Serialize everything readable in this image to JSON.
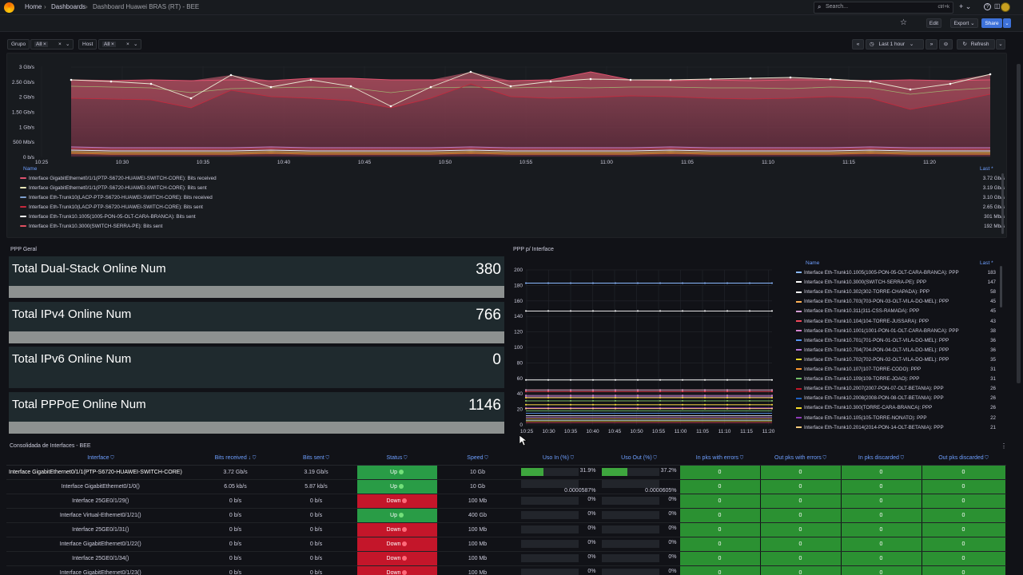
{
  "topbar": {
    "home": "Home",
    "dashboards": "Dashboards",
    "current": "Dashboard Huawei BRAS (RT) - BEE",
    "search_placeholder": "Search...",
    "shortcut": "ctrl+k"
  },
  "subbar": {
    "edit": "Edit",
    "export": "Export",
    "share": "Share"
  },
  "filters": {
    "grupo_label": "Grupo",
    "grupo_value": "All",
    "host_label": "Host",
    "host_value": "All"
  },
  "time": {
    "range": "Last 1 hour",
    "refresh": "Refresh"
  },
  "traffic": {
    "y_ticks": [
      "3 Gb/s",
      "2.50 Gb/s",
      "2 Gb/s",
      "1.50 Gb/s",
      "1 Gb/s",
      "500 Mb/s",
      "0 b/s"
    ],
    "x_ticks": [
      "10:25",
      "10:30",
      "10:35",
      "10:40",
      "10:45",
      "10:50",
      "10:55",
      "11:00",
      "11:05",
      "11:10",
      "11:15",
      "11:20"
    ],
    "legend_name": "Name",
    "legend_last": "Last *",
    "legend": [
      {
        "name": "Interface GigabitEthernet0/1/1(PTP-S6720-HUAWEI-SWITCH-CORE): Bits received",
        "value": "3.72 Gb/s",
        "color": "#e0526f"
      },
      {
        "name": "Interface GigabitEthernet0/1/1(PTP-S6720-HUAWEI-SWITCH-CORE): Bits sent",
        "value": "3.19 Gb/s",
        "color": "#e8e6b8"
      },
      {
        "name": "Interface Eth-Trunk10(LACP-PTP-S6720-HUAWEI-SWITCH-CORE): Bits received",
        "value": "3.10 Gb/s",
        "color": "#7fa0d0"
      },
      {
        "name": "Interface Eth-Trunk10(LACP-PTP-S6720-HUAWEI-SWITCH-CORE): Bits sent",
        "value": "2.65 Gb/s",
        "color": "#c8283c"
      },
      {
        "name": "Interface Eth-Trunk10.1005(1005-PON-05-OLT-CARA-BRANCA): Bits sent",
        "value": "301 Mb/s",
        "color": "#ffffff"
      },
      {
        "name": "Interface Eth-Trunk10.3000(SWITCH-SERRA-PE): Bits sent",
        "value": "192 Mb/s",
        "color": "#e05060"
      }
    ]
  },
  "ppp_geral": {
    "title": "PPP Geral",
    "stats": [
      {
        "label": "Total Dual-Stack Online Num",
        "value": "380"
      },
      {
        "label": "Total IPv4 Online Num",
        "value": "766"
      },
      {
        "label": "Total IPv6 Online Num",
        "value": "0"
      },
      {
        "label": "Total PPPoE Online Num",
        "value": "1146"
      }
    ]
  },
  "ppp_iface": {
    "title": "PPP p/ Interface",
    "legend_name": "Name",
    "legend_last": "Last *",
    "y_ticks": [
      "200",
      "180",
      "160",
      "140",
      "120",
      "100",
      "80",
      "60",
      "40",
      "20",
      "0"
    ],
    "x_ticks": [
      "10:25",
      "10:30",
      "10:35",
      "10:40",
      "10:45",
      "10:50",
      "10:55",
      "11:00",
      "11:05",
      "11:10",
      "11:15",
      "11:20"
    ],
    "legend": [
      {
        "name": "Interface Eth-Trunk10.1005(1005-PON-05-OLT-CARA-BRANCA): PPP",
        "value": "183",
        "color": "#8ab8ff"
      },
      {
        "name": "Interface Eth-Trunk10.3000(SWITCH-SERRA-PE): PPP",
        "value": "147",
        "color": "#ffffff"
      },
      {
        "name": "Interface Eth-Trunk10.302(302-TORRE-CHAPADA): PPP",
        "value": "58",
        "color": "#ffffff"
      },
      {
        "name": "Interface Eth-Trunk10.703(703-PON-03-OLT-VILA-DO-MEL): PPP",
        "value": "45",
        "color": "#ffb357"
      },
      {
        "name": "Interface Eth-Trunk10.311(311-CSS-RAMADA): PPP",
        "value": "45",
        "color": "#d6a0d6"
      },
      {
        "name": "Interface Eth-Trunk10.104(104-TORRE-JUSSARA): PPP",
        "value": "43",
        "color": "#f2495c"
      },
      {
        "name": "Interface Eth-Trunk10.1001(1001-PON-01-OLT-CARA-BRANCA): PPP",
        "value": "38",
        "color": "#d683ce"
      },
      {
        "name": "Interface Eth-Trunk10.701(701-PON-01-OLT-VILA-DO-MEL): PPP",
        "value": "36",
        "color": "#5794f2"
      },
      {
        "name": "Interface Eth-Trunk10.704(704-PON-04-OLT-VILA-DO-MEL): PPP",
        "value": "36",
        "color": "#b877d9"
      },
      {
        "name": "Interface Eth-Trunk10.702(702-PON-02-OLT-VILA-DO-MEL): PPP",
        "value": "35",
        "color": "#fade2a"
      },
      {
        "name": "Interface Eth-Trunk10.107(107-TORRE-CODO): PPP",
        "value": "31",
        "color": "#ff9830"
      },
      {
        "name": "Interface Eth-Trunk10.109(109-TORRE-JOAO): PPP",
        "value": "31",
        "color": "#73bf69"
      },
      {
        "name": "Interface Eth-Trunk10.2007(2007-PON-07-OLT-BETANIA): PPP",
        "value": "26",
        "color": "#c4162a"
      },
      {
        "name": "Interface Eth-Trunk10.2008(2008-PON-08-OLT-BETANIA): PPP",
        "value": "26",
        "color": "#1f60c4"
      },
      {
        "name": "Interface Eth-Trunk10.300(TORRE-CARA-BRANCA): PPP",
        "value": "26",
        "color": "#fade2a"
      },
      {
        "name": "Interface Eth-Trunk10.105(105-TORRE-NONATO): PPP",
        "value": "22",
        "color": "#8f3bb8"
      },
      {
        "name": "Interface Eth-Trunk10.2014(2014-PON-14-OLT-BETANIA): PPP",
        "value": "21",
        "color": "#ffcb7d"
      }
    ]
  },
  "table": {
    "title": "Consolidada de Interfaces - BEE",
    "headers": [
      "Interface",
      "Bits received",
      "Bits sent",
      "Status",
      "Speed",
      "Uso In (%)",
      "Uso Out (%)",
      "In pks with errors",
      "Out pks with errors",
      "In pks discarded",
      "Out pks discarded"
    ],
    "rows": [
      {
        "iface": "Interface GigabitEthernet0/1/1(PTP-S6720-HUAWEI-SWITCH-CORE)",
        "rx": "3.72 Gb/s",
        "tx": "3.19 Gb/s",
        "status": "Up",
        "speed": "10 Gb",
        "in": "31.9%",
        "in_level": 0.319,
        "out": "37.2%",
        "out_level": 0.372,
        "e1": "0",
        "e2": "0",
        "d1": "0",
        "d2": "0"
      },
      {
        "iface": "Interface GigabitEthernet0/1/0()",
        "rx": "6.05 kb/s",
        "tx": "5.87 kb/s",
        "status": "Up",
        "speed": "10 Gb",
        "in": "0.0000587%",
        "in_level": 0,
        "out": "0.0000605%",
        "out_level": 0,
        "e1": "0",
        "e2": "0",
        "d1": "0",
        "d2": "0"
      },
      {
        "iface": "Interface 25GE0/1/29()",
        "rx": "0 b/s",
        "tx": "0 b/s",
        "status": "Down",
        "speed": "100 Mb",
        "in": "0%",
        "in_level": 0,
        "out": "0%",
        "out_level": 0,
        "e1": "0",
        "e2": "0",
        "d1": "0",
        "d2": "0"
      },
      {
        "iface": "Interface Virtual-Ethernet0/1/21()",
        "rx": "0 b/s",
        "tx": "0 b/s",
        "status": "Up",
        "speed": "400 Gb",
        "in": "0%",
        "in_level": 0,
        "out": "0%",
        "out_level": 0,
        "e1": "0",
        "e2": "0",
        "d1": "0",
        "d2": "0"
      },
      {
        "iface": "Interface 25GE0/1/31()",
        "rx": "0 b/s",
        "tx": "0 b/s",
        "status": "Down",
        "speed": "100 Mb",
        "in": "0%",
        "in_level": 0,
        "out": "0%",
        "out_level": 0,
        "e1": "0",
        "e2": "0",
        "d1": "0",
        "d2": "0"
      },
      {
        "iface": "Interface GigabitEthernet0/1/22()",
        "rx": "0 b/s",
        "tx": "0 b/s",
        "status": "Down",
        "speed": "100 Mb",
        "in": "0%",
        "in_level": 0,
        "out": "0%",
        "out_level": 0,
        "e1": "0",
        "e2": "0",
        "d1": "0",
        "d2": "0"
      },
      {
        "iface": "Interface 25GE0/1/34()",
        "rx": "0 b/s",
        "tx": "0 b/s",
        "status": "Down",
        "speed": "100 Mb",
        "in": "0%",
        "in_level": 0,
        "out": "0%",
        "out_level": 0,
        "e1": "0",
        "e2": "0",
        "d1": "0",
        "d2": "0"
      },
      {
        "iface": "Interface GigabitEthernet0/1/23()",
        "rx": "0 b/s",
        "tx": "0 b/s",
        "status": "Down",
        "speed": "100 Mb",
        "in": "0%",
        "in_level": 0,
        "out": "0%",
        "out_level": 0,
        "e1": "0",
        "e2": "0",
        "d1": "0",
        "d2": "0"
      }
    ]
  },
  "colors": {
    "up": "#299c46",
    "down": "#c4162a",
    "accent": "#3d71d9",
    "stat_bg": "#1f2a2e",
    "stat_bar": "#8d9190"
  }
}
